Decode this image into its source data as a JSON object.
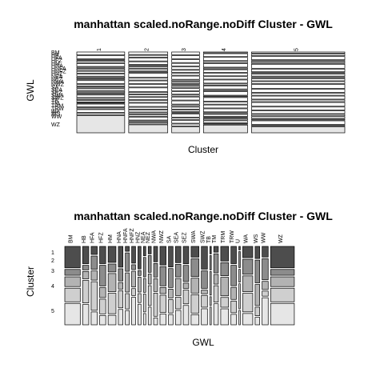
{
  "chart_data": [
    {
      "type": "mosaic",
      "title": "manhattan scaled.noRange.noDiff Cluster - GWL",
      "xlabel": "Cluster",
      "ylabel": "GWL",
      "categories": [
        "1",
        "2",
        "3",
        "4",
        "5"
      ],
      "y_tick_labels": [
        "BM",
        "HB",
        "HFA",
        "HFZ",
        "HM",
        "HNA",
        "HNFA",
        "HNFZ",
        "HNZ",
        "NEA",
        "NEZ",
        "NWA",
        "NWZ",
        "SA",
        "SEA",
        "SEZ",
        "SWA",
        "SWZ",
        "TB",
        "TM",
        "TRM",
        "TRW",
        "WA",
        "WS",
        "WW",
        "WZ"
      ],
      "column_fractions": [
        0.19,
        0.155,
        0.11,
        0.175,
        0.37
      ]
    },
    {
      "type": "mosaic",
      "title": "manhattan scaled.noRange.noDiff Cluster - GWL",
      "xlabel": "GWL",
      "ylabel": "Cluster",
      "categories": [
        "BM",
        "HB",
        "HFA",
        "HFZ",
        "HM",
        "HNA",
        "HNFA",
        "HNFZ",
        "HNZ",
        "NEA",
        "NEZ",
        "NWA",
        "NWZ",
        "SA",
        "SEA",
        "SEZ",
        "SWA",
        "SWZ",
        "TB",
        "TM",
        "TRM",
        "TRW",
        "U",
        "WA",
        "WS",
        "WW",
        "WZ"
      ],
      "cluster_labels": [
        "1",
        "2",
        "3",
        "4",
        "5"
      ],
      "column_fractions": [
        0.071,
        0.028,
        0.028,
        0.028,
        0.036,
        0.021,
        0.018,
        0.018,
        0.014,
        0.011,
        0.014,
        0.018,
        0.028,
        0.021,
        0.025,
        0.025,
        0.036,
        0.028,
        0.007,
        0.021,
        0.036,
        0.025,
        0.007,
        0.046,
        0.021,
        0.028,
        0.109
      ],
      "fills": [
        "#4d4d4d",
        "#8c8c8c",
        "#b3b3b3",
        "#cfcfcf",
        "#e6e6e6"
      ]
    }
  ]
}
